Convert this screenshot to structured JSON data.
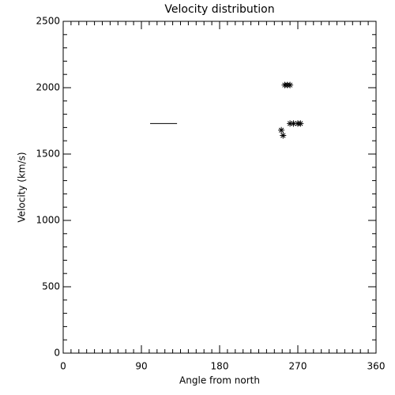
{
  "chart_data": {
    "type": "scatter",
    "title": "Velocity distribution",
    "x_label": "Angle from north",
    "y_label": "Velocity (km/s)",
    "xlim": [
      0,
      360
    ],
    "xticks": [
      0,
      90,
      180,
      270,
      360
    ],
    "ylim": [
      0,
      2500
    ],
    "yticks": [
      0,
      500,
      1000,
      1500,
      2000,
      2500
    ],
    "series": [
      {
        "style": "asterisk",
        "color": "#000000",
        "x": [
          255,
          258,
          261,
          251,
          253,
          261,
          265,
          270,
          273
        ],
        "values": [
          2020,
          2020,
          2020,
          1680,
          1640,
          1730,
          1730,
          1730,
          1730
        ]
      },
      {
        "style": "line",
        "color": "#000000",
        "x": [
          100,
          131
        ],
        "values": [
          1730,
          1730
        ]
      }
    ]
  }
}
